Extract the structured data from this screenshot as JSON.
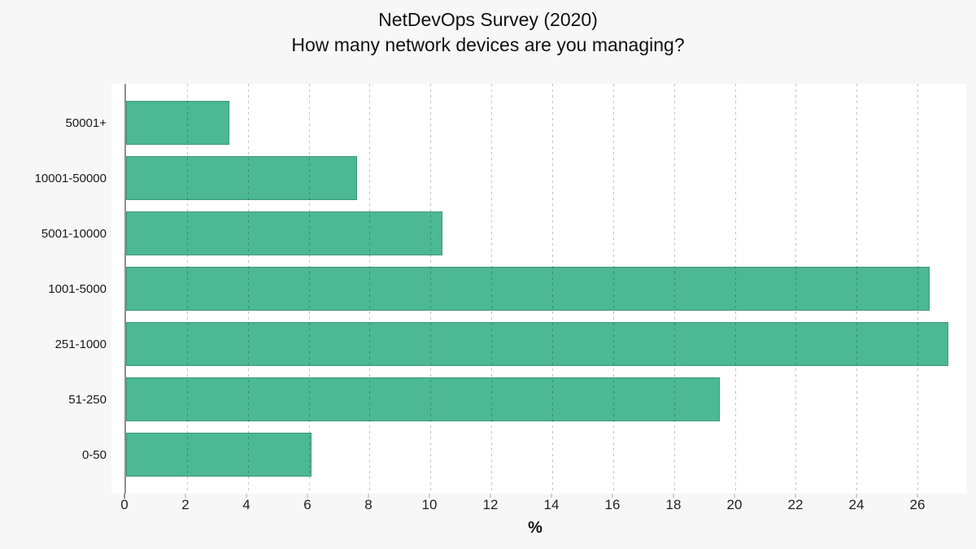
{
  "title": {
    "line1": "NetDevOps Survey (2020)",
    "line2": "How many network devices are you managing?"
  },
  "chart_data": {
    "type": "bar",
    "orientation": "horizontal",
    "title": "NetDevOps Survey (2020)\nHow many network devices are you managing?",
    "categories": [
      "50001+",
      "10001-50000",
      "5001-10000",
      "1001-5000",
      "251-1000",
      "51-250",
      "0-50"
    ],
    "values": [
      3.4,
      7.6,
      10.4,
      26.4,
      27.0,
      19.5,
      6.1
    ],
    "xlabel": "%",
    "ylabel": "",
    "x_ticks": [
      0,
      2,
      4,
      6,
      8,
      10,
      12,
      14,
      16,
      18,
      20,
      22,
      24,
      26
    ],
    "xlim": [
      0,
      27.6
    ],
    "bar_color": "#4cb894",
    "plot_background": "#ffffff",
    "page_background": "#f7f7f7",
    "grid": "vertical dotted, drawn over bars",
    "legend": "none"
  }
}
